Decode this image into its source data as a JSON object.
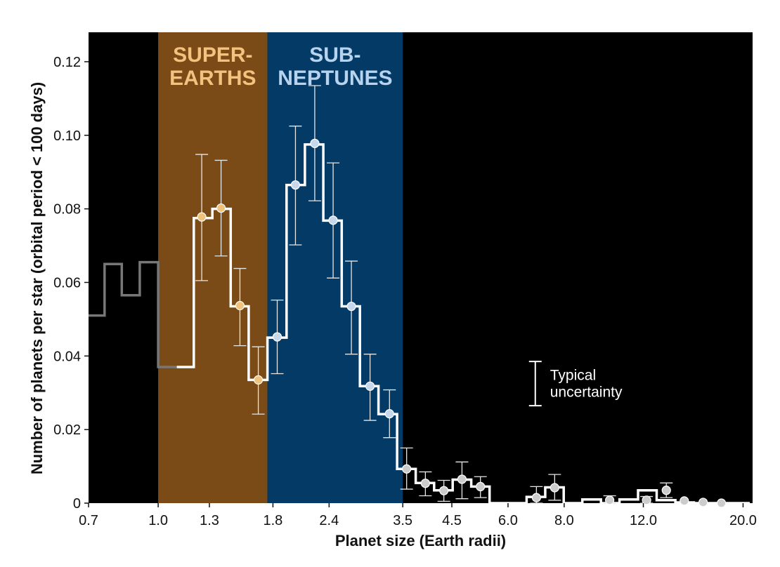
{
  "chart_data": {
    "type": "line",
    "xlabel": "Planet size (Earth radii)",
    "ylabel": "Number of planets per star (orbital period < 100 days)",
    "x_scale": "log",
    "xlim": [
      0.7,
      21.0
    ],
    "ylim": [
      0,
      0.128
    ],
    "x_ticks": [
      {
        "value": 0.7,
        "label": "0.7"
      },
      {
        "value": 1.0,
        "label": "1.0"
      },
      {
        "value": 1.3,
        "label": "1.3"
      },
      {
        "value": 1.8,
        "label": "1.8"
      },
      {
        "value": 2.4,
        "label": "2.4"
      },
      {
        "value": 3.5,
        "label": "3.5"
      },
      {
        "value": 4.5,
        "label": "4.5"
      },
      {
        "value": 6.0,
        "label": "6.0"
      },
      {
        "value": 8.0,
        "label": "8.0"
      },
      {
        "value": 12.0,
        "label": "12.0"
      },
      {
        "value": 20.0,
        "label": "20.0"
      }
    ],
    "y_ticks": [
      {
        "value": 0,
        "label": "0"
      },
      {
        "value": 0.02,
        "label": "0.02"
      },
      {
        "value": 0.04,
        "label": "0.04"
      },
      {
        "value": 0.06,
        "label": "0.06"
      },
      {
        "value": 0.08,
        "label": "0.08"
      },
      {
        "value": 0.1,
        "label": "0.10"
      },
      {
        "value": 0.12,
        "label": "0.12"
      }
    ],
    "regions": [
      {
        "label_lines": [
          "SUPER-",
          "EARTHS"
        ],
        "x_range": [
          1.0,
          1.75
        ],
        "fill": "#7a4a17",
        "text_color": "#f2c27f"
      },
      {
        "label_lines": [
          "SUB-",
          "NEPTUNES"
        ],
        "x_range": [
          1.75,
          3.5
        ],
        "fill": "#033a66",
        "text_color": "#b8d3ee"
      }
    ],
    "gray_histogram": {
      "edges": [
        0.7,
        0.76,
        0.83,
        0.91,
        1.0,
        1.1
      ],
      "values": [
        0.051,
        0.065,
        0.0565,
        0.0655,
        0.037
      ],
      "color": "#777777"
    },
    "white_histogram": {
      "edges": [
        1.1,
        1.2,
        1.32,
        1.45,
        1.59,
        1.75,
        1.93,
        2.12,
        2.33,
        2.56,
        2.81,
        3.09,
        3.4,
        3.74,
        4.11,
        4.52,
        4.97,
        5.46,
        6.0,
        6.6,
        7.26,
        7.98,
        8.78,
        9.66,
        10.62,
        11.68,
        12.85,
        14.14,
        15.55,
        17.1,
        18.81,
        20.7
      ],
      "values": [
        0.037,
        0.0775,
        0.08,
        0.0535,
        0.0335,
        0.045,
        0.0865,
        0.0975,
        0.0768,
        0.0535,
        0.0318,
        0.0242,
        0.0093,
        0.0055,
        0.0035,
        0.0064,
        0.0045,
        0.0,
        0.0,
        0.0017,
        0.0043,
        0.0,
        0.001,
        0.0,
        0.001,
        0.0035,
        0.0008,
        0.0002,
        0.0,
        0.0,
        0.0
      ],
      "color": "#ffffff"
    },
    "points": [
      {
        "x": 1.25,
        "y": 0.0778,
        "err_low": 0.0605,
        "err_high": 0.0948,
        "color": "#efc37c"
      },
      {
        "x": 1.38,
        "y": 0.0802,
        "err_low": 0.0672,
        "err_high": 0.0932,
        "color": "#efc37c"
      },
      {
        "x": 1.52,
        "y": 0.0537,
        "err_low": 0.0428,
        "err_high": 0.0638,
        "color": "#efc37c"
      },
      {
        "x": 1.67,
        "y": 0.0335,
        "err_low": 0.0242,
        "err_high": 0.0425,
        "color": "#efc37c"
      },
      {
        "x": 1.84,
        "y": 0.0452,
        "err_low": 0.0352,
        "err_high": 0.0552,
        "color": "#c7d7ec"
      },
      {
        "x": 2.02,
        "y": 0.0865,
        "err_low": 0.0702,
        "err_high": 0.1025,
        "color": "#c7d7ec"
      },
      {
        "x": 2.23,
        "y": 0.0978,
        "err_low": 0.0822,
        "err_high": 0.1135,
        "color": "#c7d7ec"
      },
      {
        "x": 2.45,
        "y": 0.0769,
        "err_low": 0.0612,
        "err_high": 0.0925,
        "color": "#c7d7ec"
      },
      {
        "x": 2.69,
        "y": 0.0535,
        "err_low": 0.0405,
        "err_high": 0.0658,
        "color": "#c7d7ec"
      },
      {
        "x": 2.96,
        "y": 0.0318,
        "err_low": 0.0225,
        "err_high": 0.0405,
        "color": "#c7d7ec"
      },
      {
        "x": 3.27,
        "y": 0.0243,
        "err_low": 0.0178,
        "err_high": 0.0308,
        "color": "#c7d7ec"
      },
      {
        "x": 3.57,
        "y": 0.0093,
        "err_low": 0.0038,
        "err_high": 0.015,
        "color": "#cccccc"
      },
      {
        "x": 3.93,
        "y": 0.0054,
        "err_low": 0.002,
        "err_high": 0.0085,
        "color": "#cccccc"
      },
      {
        "x": 4.32,
        "y": 0.0034,
        "err_low": 0.0005,
        "err_high": 0.0062,
        "color": "#cccccc"
      },
      {
        "x": 4.74,
        "y": 0.0065,
        "err_low": 0.0012,
        "err_high": 0.0112,
        "color": "#cccccc"
      },
      {
        "x": 5.21,
        "y": 0.0045,
        "err_low": 0.0015,
        "err_high": 0.0072,
        "color": "#cccccc"
      },
      {
        "x": 6.94,
        "y": 0.0015,
        "err_low": 0.0,
        "err_high": 0.0045,
        "color": "#cccccc"
      },
      {
        "x": 7.62,
        "y": 0.0042,
        "err_low": 0.0008,
        "err_high": 0.0078,
        "color": "#cccccc"
      },
      {
        "x": 10.1,
        "y": 0.0008,
        "err_low": 0.0,
        "err_high": 0.002,
        "color": "#cccccc"
      },
      {
        "x": 12.2,
        "y": 0.0008,
        "err_low": 0.0,
        "err_high": 0.0018,
        "color": "#cccccc"
      },
      {
        "x": 13.5,
        "y": 0.0035,
        "err_low": 0.0015,
        "err_high": 0.0055,
        "color": "#cccccc"
      },
      {
        "x": 14.8,
        "y": 0.0006,
        "err_low": 0.0,
        "err_high": 0.0,
        "color": "#cccccc"
      },
      {
        "x": 16.3,
        "y": 0.0002,
        "err_low": 0.0,
        "err_high": 0.0,
        "color": "#cccccc"
      },
      {
        "x": 17.9,
        "y": 0.0,
        "err_low": 0.0,
        "err_high": 0.0,
        "color": "#cccccc"
      }
    ],
    "legend": {
      "text_lines": [
        "Typical",
        "uncertainty"
      ],
      "x": 6.9,
      "y_low": 0.0265,
      "y_high": 0.0385
    },
    "colors": {
      "plot_background": "#000000",
      "axis_text": "#111111"
    }
  }
}
